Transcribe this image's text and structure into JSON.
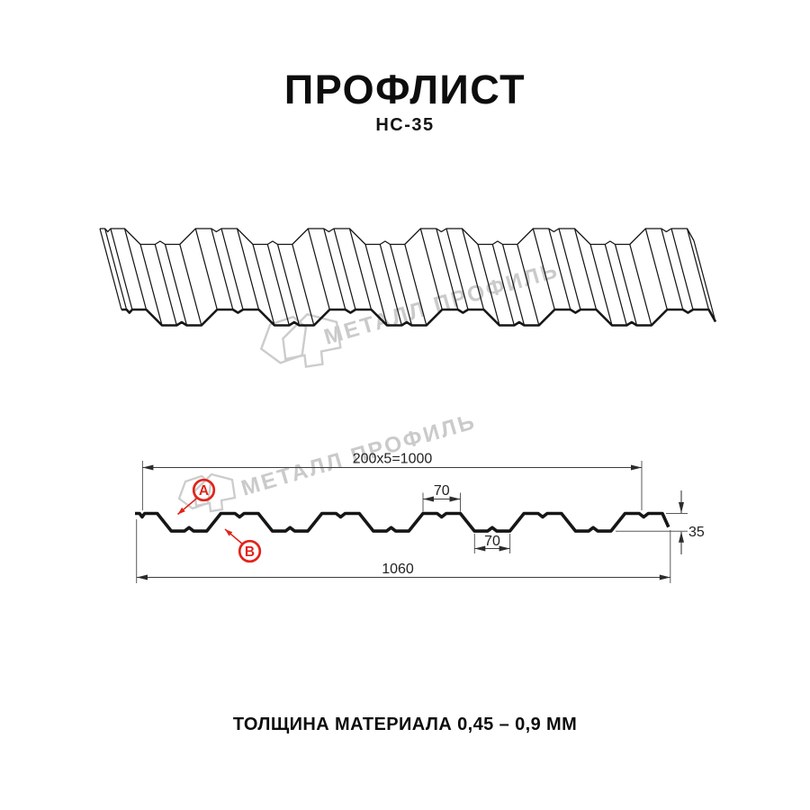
{
  "title": "ПРОФЛИСТ",
  "subtitle": "НС-35",
  "footer": "ТОЛЩИНА МАТЕРИАЛА 0,45 – 0,9 ММ",
  "watermark": {
    "text": "МЕТАЛЛ ПРОФИЛЬ",
    "color": "#cacaca"
  },
  "diagram": {
    "dim_top_width": "200x5=1000",
    "dim_crest_width": "70",
    "dim_trough_width": "70",
    "dim_height": "35",
    "dim_total_width": "1060",
    "label_a": "А",
    "label_b": "В",
    "accent_color": "#e2231a",
    "line_color": "#161616"
  }
}
